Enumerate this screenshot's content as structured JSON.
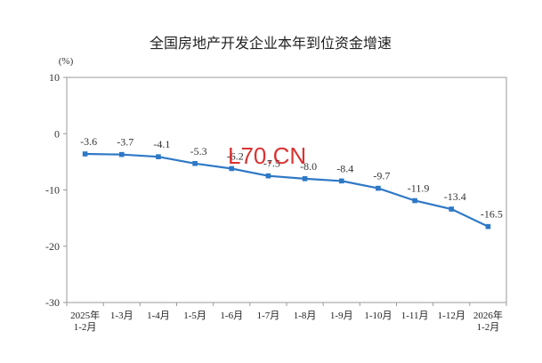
{
  "chart_data": {
    "type": "line",
    "title": "全国房地产开发企业本年到位资金增速",
    "unit": "(%)",
    "categories": [
      [
        "2025年",
        "1-2月"
      ],
      [
        "1-3月"
      ],
      [
        "1-4月"
      ],
      [
        "1-5月"
      ],
      [
        "1-6月"
      ],
      [
        "1-7月"
      ],
      [
        "1-8月"
      ],
      [
        "1-9月"
      ],
      [
        "1-10月"
      ],
      [
        "1-11月"
      ],
      [
        "1-12月"
      ],
      [
        "2026年",
        "1-2月"
      ]
    ],
    "values": [
      -3.6,
      -3.7,
      -4.1,
      -5.3,
      -6.2,
      -7.5,
      -8.0,
      -8.4,
      -9.7,
      -11.9,
      -13.4,
      -16.5
    ],
    "data_labels": [
      "-3.6",
      "-3.7",
      "-4.1",
      "-5.3",
      "-6.2",
      "-7.5",
      "-8.0",
      "-8.4",
      "-9.7",
      "-11.9",
      "-13.4",
      "-16.5"
    ],
    "ylim": [
      -30,
      10
    ],
    "yticks": [
      10,
      0,
      -10,
      -20,
      -30
    ],
    "grid": false,
    "line_color": "#2e78c6"
  },
  "watermark": "L70.CN",
  "watermark_color": "#d71c1c"
}
